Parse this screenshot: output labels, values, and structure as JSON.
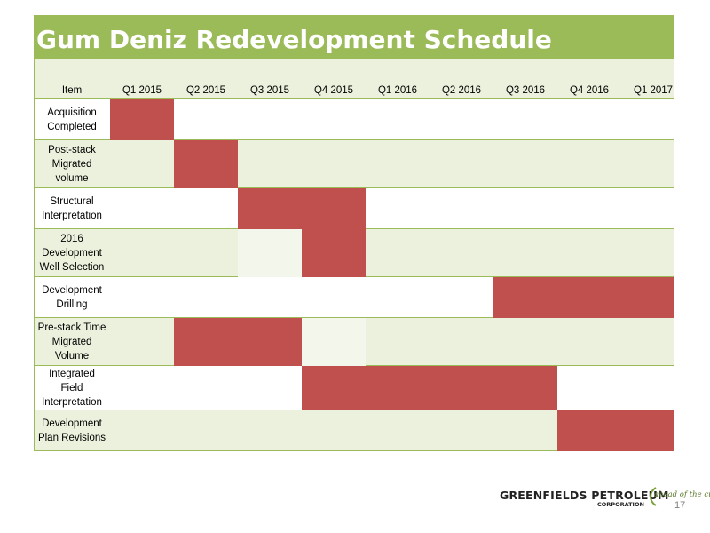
{
  "slide": {
    "title": "Gum Deniz Redevelopment Schedule",
    "page_number": "17"
  },
  "colors": {
    "title_bar": "#9bbb59",
    "row_alt": "#ebf1dd",
    "bar": "#c0504d",
    "border": "#9bbb59"
  },
  "schedule": {
    "item_header": "Item",
    "quarters": [
      "Q1 2015",
      "Q2 2015",
      "Q3 2015",
      "Q4 2015",
      "Q1 2016",
      "Q2 2016",
      "Q3 2016",
      "Q4 2016",
      "Q1 2017"
    ],
    "tasks": [
      {
        "label": "Acquisition\nCompleted",
        "start": "Q1 2015",
        "end": "Q1 2015"
      },
      {
        "label": "Post-stack\nMigrated\nvolume",
        "start": "Q2 2015",
        "end": "Q2 2015"
      },
      {
        "label": "Structural\nInterpretation",
        "start": "Q3 2015",
        "end": "Q4 2015"
      },
      {
        "label": "2016\nDevelopment\nWell Selection",
        "start": "Q4 2015",
        "end": "Q4 2015"
      },
      {
        "label": "Development\nDrilling",
        "start": "Q3 2016",
        "end": "Q1 2017"
      },
      {
        "label": "Pre-stack Time\nMigrated\nVolume",
        "start": "Q2 2015",
        "end": "Q3 2015"
      },
      {
        "label": "Integrated\nField\nInterpretation",
        "start": "Q4 2015",
        "end": "Q3 2016"
      },
      {
        "label": "Development\nPlan Revisions",
        "start": "Q4 2016",
        "end": "Q1 2017"
      }
    ]
  },
  "logo": {
    "company": "GREENFIELDS PETROLEUM",
    "subtitle": "CORPORATION",
    "tagline": "ahead of the curve"
  }
}
